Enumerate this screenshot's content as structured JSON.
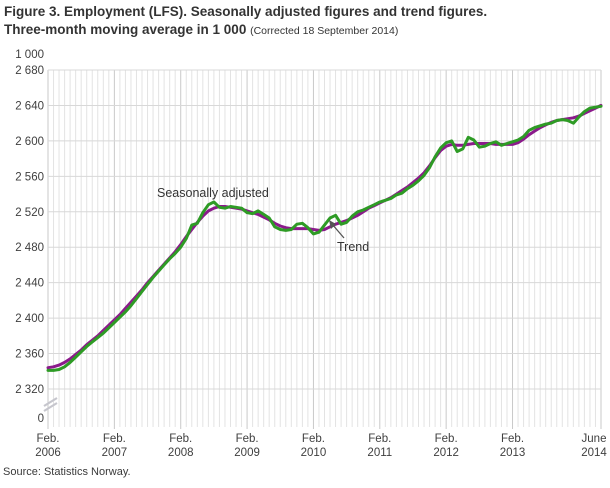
{
  "title": {
    "line1": "Figure 3. Employment (LFS). Seasonally adjusted figures and trend figures.",
    "line2": "Three-month moving average in 1 000",
    "note": "(Corrected 18 September 2014)"
  },
  "source": "Source: Statistics Norway.",
  "chart_data": {
    "type": "line",
    "title": "Employment (LFS), three-month moving average in 1 000",
    "unit_label": "1 000",
    "ylim": [
      2320,
      2680
    ],
    "y_ticks": [
      2680,
      2640,
      2600,
      2560,
      2520,
      2480,
      2440,
      2400,
      2360,
      2320
    ],
    "y_zero_label": "0",
    "axis_break": true,
    "grid": "on",
    "x_range_months": 101,
    "x_ticks": [
      {
        "m": 0,
        "line1": "Feb.",
        "line2": "2006"
      },
      {
        "m": 12,
        "line1": "Feb.",
        "line2": "2007"
      },
      {
        "m": 24,
        "line1": "Feb.",
        "line2": "2008"
      },
      {
        "m": 36,
        "line1": "Feb.",
        "line2": "2009"
      },
      {
        "m": 48,
        "line1": "Feb.",
        "line2": "2010"
      },
      {
        "m": 60,
        "line1": "Feb.",
        "line2": "2011"
      },
      {
        "m": 72,
        "line1": "Feb.",
        "line2": "2012"
      },
      {
        "m": 84,
        "line1": "Feb.",
        "line2": "2013"
      },
      {
        "m": 100,
        "line1": "June",
        "line2": "2014"
      }
    ],
    "series": [
      {
        "name": "Trend",
        "color": "#8B1A8B",
        "values": [
          2344,
          2345,
          2347,
          2350,
          2354,
          2359,
          2364,
          2370,
          2375,
          2380,
          2386,
          2392,
          2398,
          2404,
          2411,
          2418,
          2425,
          2432,
          2440,
          2447,
          2454,
          2461,
          2468,
          2475,
          2483,
          2492,
          2500,
          2508,
          2515,
          2521,
          2524,
          2526,
          2526,
          2525,
          2524,
          2523,
          2521,
          2519,
          2517,
          2514,
          2511,
          2507,
          2504,
          2502,
          2501,
          2501,
          2501,
          2501,
          2500,
          2499,
          2500,
          2503,
          2506,
          2508,
          2510,
          2513,
          2516,
          2520,
          2524,
          2527,
          2530,
          2533,
          2536,
          2540,
          2544,
          2548,
          2553,
          2558,
          2564,
          2572,
          2581,
          2589,
          2594,
          2596,
          2595,
          2595,
          2596,
          2597,
          2597,
          2597,
          2597,
          2596,
          2596,
          2596,
          2596,
          2598,
          2602,
          2607,
          2611,
          2615,
          2618,
          2621,
          2623,
          2624,
          2625,
          2626,
          2628,
          2631,
          2634,
          2637,
          2640
        ]
      },
      {
        "name": "Seasonally adjusted",
        "color": "#2E9B25",
        "values": [
          2341,
          2341,
          2342,
          2345,
          2350,
          2356,
          2362,
          2368,
          2373,
          2378,
          2383,
          2389,
          2395,
          2401,
          2407,
          2414,
          2422,
          2430,
          2438,
          2446,
          2453,
          2460,
          2467,
          2473,
          2480,
          2490,
          2505,
          2507,
          2519,
          2528,
          2531,
          2525,
          2524,
          2526,
          2525,
          2524,
          2519,
          2518,
          2521,
          2517,
          2513,
          2503,
          2500,
          2499,
          2500,
          2506,
          2507,
          2502,
          2495,
          2497,
          2505,
          2513,
          2516,
          2506,
          2508,
          2515,
          2520,
          2522,
          2525,
          2528,
          2531,
          2533,
          2535,
          2539,
          2541,
          2546,
          2550,
          2555,
          2561,
          2570,
          2582,
          2592,
          2598,
          2600,
          2588,
          2591,
          2604,
          2601,
          2593,
          2594,
          2597,
          2599,
          2595,
          2597,
          2599,
          2601,
          2605,
          2612,
          2615,
          2617,
          2619,
          2620,
          2623,
          2624,
          2623,
          2620,
          2627,
          2633,
          2637,
          2638,
          2639
        ]
      }
    ],
    "annotations": [
      {
        "text": "Seasonally adjusted",
        "target_series": "Seasonally adjusted"
      },
      {
        "text": "Trend",
        "target_series": "Trend",
        "arrow": true
      }
    ]
  }
}
